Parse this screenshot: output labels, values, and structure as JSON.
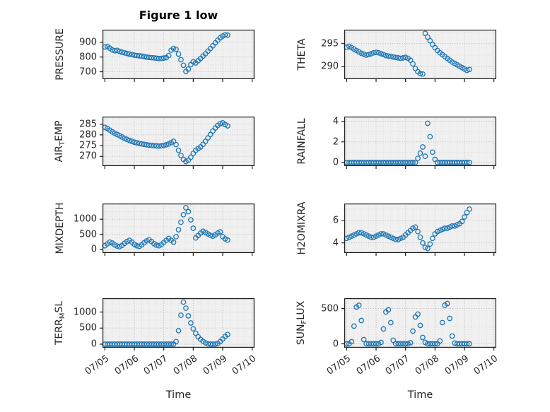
{
  "figure": {
    "title": "Figure 1 low",
    "xlabel": "Time"
  },
  "colors": {
    "marker": "#1f77b4",
    "axes_bg": "#f0f0f0",
    "grid_major": "#b5b5b5",
    "grid_minor": "#d9d9d9",
    "frame": "#1a1a1a",
    "text": "#262626"
  },
  "x": {
    "lim": [
      -0.08,
      5.08
    ],
    "ticks": [
      0,
      1,
      2,
      3,
      4,
      5
    ],
    "tick_labels": [
      "07/05",
      "07/06",
      "07/07",
      "07/08",
      "07/09",
      "07/10"
    ],
    "values": [
      0,
      0.083,
      0.167,
      0.25,
      0.333,
      0.417,
      0.5,
      0.583,
      0.667,
      0.75,
      0.833,
      0.917,
      1,
      1.083,
      1.167,
      1.25,
      1.333,
      1.417,
      1.5,
      1.583,
      1.667,
      1.75,
      1.833,
      1.917,
      2,
      2.083,
      2.167,
      2.25,
      2.333,
      2.417,
      2.5,
      2.583,
      2.667,
      2.75,
      2.833,
      2.917,
      3,
      3.083,
      3.167,
      3.25,
      3.333,
      3.417,
      3.5,
      3.583,
      3.667,
      3.75,
      3.833,
      3.917,
      4,
      4.083,
      4.167
    ]
  },
  "chart_data": [
    {
      "type": "scatter",
      "name": "PRESSURE",
      "ylabel": [
        {
          "t": "PRESSURE"
        }
      ],
      "ylim": [
        650,
        985
      ],
      "yticks": [
        700,
        800,
        900
      ],
      "show_xticklabels": false,
      "y": [
        868,
        872,
        860,
        848,
        842,
        845,
        838,
        832,
        828,
        824,
        820,
        816,
        812,
        810,
        808,
        806,
        802,
        799,
        797,
        795,
        794,
        792,
        790,
        791,
        793,
        796,
        810,
        846,
        858,
        852,
        820,
        782,
        744,
        702,
        718,
        748,
        768,
        760,
        775,
        790,
        806,
        822,
        840,
        858,
        876,
        896,
        914,
        930,
        942,
        950,
        948
      ]
    },
    {
      "type": "scatter",
      "name": "THETA",
      "ylabel": [
        {
          "t": "THETA"
        }
      ],
      "ylim": [
        287.3,
        298.0
      ],
      "yticks": [
        290,
        295
      ],
      "show_xticklabels": false,
      "y": [
        294.2,
        294.4,
        294.1,
        293.8,
        293.5,
        293.2,
        292.9,
        292.7,
        292.5,
        292.6,
        292.8,
        293.0,
        293.1,
        293.0,
        292.8,
        292.6,
        292.4,
        292.3,
        292.2,
        292.1,
        292.0,
        291.9,
        291.8,
        291.9,
        292.0,
        291.8,
        291.4,
        290.6,
        289.6,
        288.9,
        288.5,
        288.4,
        297.2,
        296.4,
        295.6,
        294.8,
        294.1,
        293.5,
        293.0,
        292.6,
        292.2,
        291.8,
        291.4,
        291.0,
        290.7,
        290.4,
        290.1,
        289.8,
        289.5,
        289.2,
        289.4
      ]
    },
    {
      "type": "scatter",
      "name": "AIR_TEMP",
      "ylabel": [
        {
          "t": "AIR"
        },
        {
          "t": "T",
          "sub": true
        },
        {
          "t": "EMP"
        }
      ],
      "ylim": [
        265.5,
        288.5
      ],
      "yticks": [
        270,
        275,
        280,
        285
      ],
      "show_xticklabels": false,
      "y": [
        283.5,
        283.0,
        282.2,
        281.4,
        280.8,
        280.2,
        279.6,
        279.0,
        278.4,
        277.9,
        277.4,
        277.0,
        276.6,
        276.3,
        276.0,
        275.8,
        275.6,
        275.4,
        275.2,
        275.1,
        275.0,
        274.9,
        274.8,
        274.9,
        275.1,
        275.4,
        275.8,
        276.4,
        277.0,
        275.5,
        272.8,
        270.4,
        268.6,
        267.6,
        268.2,
        269.6,
        271.4,
        272.8,
        273.6,
        274.4,
        275.6,
        277.0,
        278.6,
        280.2,
        281.8,
        283.2,
        284.4,
        285.2,
        285.6,
        284.8,
        284.2
      ]
    },
    {
      "type": "scatter",
      "name": "RAINFALL",
      "ylabel": [
        {
          "t": "RAINFALL"
        }
      ],
      "ylim": [
        -0.35,
        4.45
      ],
      "yticks": [
        0,
        2,
        4
      ],
      "show_xticklabels": false,
      "y": [
        0,
        0,
        0,
        0,
        0,
        0,
        0,
        0,
        0,
        0,
        0,
        0,
        0,
        0,
        0,
        0,
        0,
        0,
        0,
        0,
        0,
        0,
        0,
        0,
        0,
        0,
        0,
        0,
        0,
        0.4,
        0.9,
        1.5,
        0.6,
        3.8,
        2.5,
        1.0,
        0.3,
        0,
        0,
        0,
        0,
        0,
        0,
        0,
        0,
        0,
        0,
        0,
        0,
        0,
        0
      ]
    },
    {
      "type": "scatter",
      "name": "MIXDEPTH",
      "ylabel": [
        {
          "t": "MIXDEPTH"
        }
      ],
      "ylim": [
        -120,
        1520
      ],
      "yticks": [
        0,
        500,
        1000
      ],
      "show_xticklabels": false,
      "y": [
        120,
        180,
        240,
        210,
        150,
        110,
        90,
        130,
        200,
        260,
        300,
        240,
        170,
        120,
        100,
        150,
        220,
        280,
        320,
        260,
        190,
        140,
        120,
        160,
        230,
        300,
        360,
        300,
        240,
        420,
        650,
        900,
        1150,
        1380,
        1250,
        980,
        700,
        380,
        460,
        540,
        600,
        560,
        510,
        470,
        440,
        480,
        540,
        580,
        420,
        350,
        310
      ]
    },
    {
      "type": "scatter",
      "name": "H2OMIXRA",
      "ylabel": [
        {
          "t": "H2OMIXRA"
        }
      ],
      "ylim": [
        3.1,
        7.5
      ],
      "yticks": [
        4,
        6
      ],
      "show_xticklabels": false,
      "y": [
        4.4,
        4.5,
        4.6,
        4.7,
        4.8,
        4.9,
        4.9,
        4.8,
        4.7,
        4.6,
        4.5,
        4.5,
        4.6,
        4.7,
        4.8,
        4.8,
        4.7,
        4.6,
        4.5,
        4.4,
        4.3,
        4.3,
        4.4,
        4.5,
        4.7,
        4.9,
        5.1,
        5.3,
        5.4,
        5.0,
        4.5,
        4.0,
        3.6,
        3.5,
        3.9,
        4.4,
        4.8,
        5.0,
        5.1,
        5.2,
        5.3,
        5.3,
        5.4,
        5.5,
        5.5,
        5.6,
        5.7,
        5.9,
        6.3,
        6.7,
        7.0
      ]
    },
    {
      "type": "scatter",
      "name": "TERR_MSL",
      "ylabel": [
        {
          "t": "TERR"
        },
        {
          "t": "M",
          "sub": true
        },
        {
          "t": "SL"
        }
      ],
      "ylim": [
        -110,
        1430
      ],
      "yticks": [
        0,
        500,
        1000
      ],
      "show_xticklabels": true,
      "y": [
        0,
        0,
        0,
        0,
        0,
        0,
        0,
        0,
        0,
        0,
        0,
        0,
        0,
        0,
        0,
        0,
        0,
        0,
        0,
        0,
        0,
        0,
        0,
        0,
        0,
        0,
        0,
        0,
        0,
        80,
        420,
        900,
        1310,
        1120,
        880,
        660,
        480,
        340,
        230,
        150,
        90,
        40,
        10,
        0,
        0,
        0,
        20,
        80,
        160,
        240,
        300
      ]
    },
    {
      "type": "scatter",
      "name": "SUN_FLUX",
      "ylabel": [
        {
          "t": "SUN"
        },
        {
          "t": "F",
          "sub": true
        },
        {
          "t": "LUX"
        }
      ],
      "ylim": [
        -55,
        645
      ],
      "yticks": [
        0,
        500
      ],
      "show_xticklabels": true,
      "y": [
        0,
        0,
        30,
        250,
        520,
        545,
        330,
        60,
        0,
        0,
        0,
        0,
        0,
        0,
        20,
        210,
        450,
        480,
        300,
        50,
        0,
        0,
        0,
        0,
        0,
        0,
        15,
        180,
        380,
        420,
        260,
        90,
        20,
        0,
        0,
        0,
        0,
        0,
        40,
        300,
        545,
        570,
        360,
        110,
        10,
        0,
        0,
        0,
        0,
        0,
        0
      ]
    }
  ]
}
